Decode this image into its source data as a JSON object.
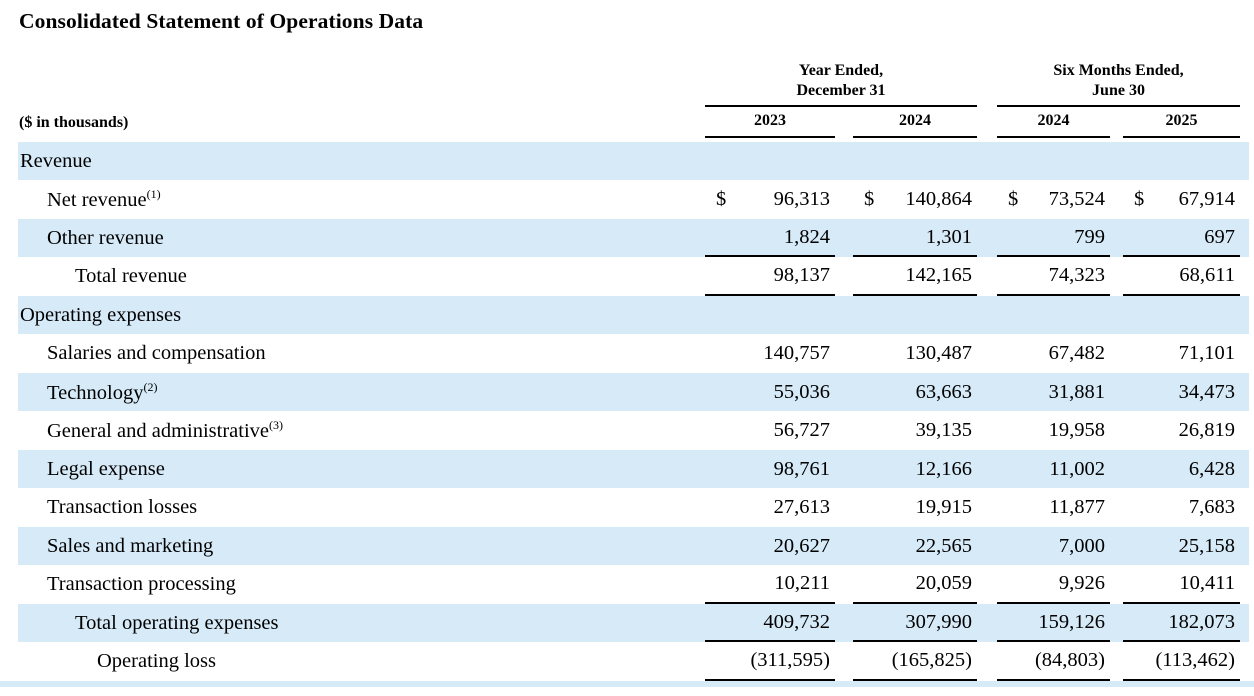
{
  "title": "Consolidated Statement of Operations Data",
  "table": {
    "units_label": "($ in thousands)",
    "column_groups": [
      {
        "line1": "Year Ended,",
        "line2": "December 31",
        "years": [
          "2023",
          "2024"
        ]
      },
      {
        "line1": "Six Months Ended,",
        "line2": "June 30",
        "years": [
          "2024",
          "2025"
        ]
      }
    ],
    "rows": [
      {
        "label": "Revenue",
        "indent": 0,
        "section": true,
        "shaded": true,
        "values": [
          "",
          "",
          "",
          ""
        ]
      },
      {
        "label": "Net revenue",
        "sup": "(1)",
        "indent": 1,
        "shaded": false,
        "dollar": true,
        "values": [
          "96,313",
          "140,864",
          "73,524",
          "67,914"
        ]
      },
      {
        "label": "Other revenue",
        "indent": 1,
        "shaded": true,
        "rule_below": true,
        "values": [
          "1,824",
          "1,301",
          "799",
          "697"
        ]
      },
      {
        "label": "Total revenue",
        "indent": 2,
        "shaded": false,
        "rule_below": true,
        "values": [
          "98,137",
          "142,165",
          "74,323",
          "68,611"
        ]
      },
      {
        "label": "Operating expenses",
        "indent": 0,
        "section": true,
        "shaded": true,
        "values": [
          "",
          "",
          "",
          ""
        ]
      },
      {
        "label": "Salaries and compensation",
        "indent": 1,
        "shaded": false,
        "values": [
          "140,757",
          "130,487",
          "67,482",
          "71,101"
        ]
      },
      {
        "label": "Technology",
        "sup": "(2)",
        "indent": 1,
        "shaded": true,
        "values": [
          "55,036",
          "63,663",
          "31,881",
          "34,473"
        ]
      },
      {
        "label": "General and administrative",
        "sup": "(3)",
        "indent": 1,
        "shaded": false,
        "values": [
          "56,727",
          "39,135",
          "19,958",
          "26,819"
        ]
      },
      {
        "label": "Legal expense",
        "indent": 1,
        "shaded": true,
        "values": [
          "98,761",
          "12,166",
          "11,002",
          "6,428"
        ]
      },
      {
        "label": "Transaction losses",
        "indent": 1,
        "shaded": false,
        "values": [
          "27,613",
          "19,915",
          "11,877",
          "7,683"
        ]
      },
      {
        "label": "Sales and marketing",
        "indent": 1,
        "shaded": true,
        "values": [
          "20,627",
          "22,565",
          "7,000",
          "25,158"
        ]
      },
      {
        "label": "Transaction processing",
        "indent": 1,
        "shaded": false,
        "rule_below": true,
        "values": [
          "10,211",
          "20,059",
          "9,926",
          "10,411"
        ]
      },
      {
        "label": "Total operating expenses",
        "indent": 2,
        "shaded": true,
        "rule_below": true,
        "values": [
          "409,732",
          "307,990",
          "159,126",
          "182,073"
        ]
      },
      {
        "label": "Operating loss",
        "indent": 3,
        "shaded": false,
        "rule_below": true,
        "values": [
          "(311,595)",
          "(165,825)",
          "(84,803)",
          "(113,462)"
        ]
      }
    ]
  },
  "colors": {
    "row_shade": "#d6eaf8",
    "rule": "#000000",
    "text": "#000000"
  }
}
